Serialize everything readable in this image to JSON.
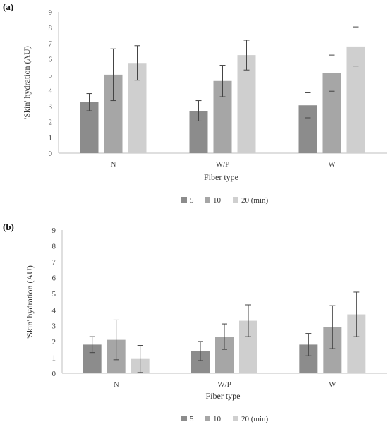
{
  "chart_data": [
    {
      "type": "bar",
      "panel_label": "(a)",
      "categories": [
        "N",
        "W/P",
        "W"
      ],
      "series": [
        {
          "name": "5",
          "values": [
            3.25,
            2.7,
            3.05
          ],
          "errors": [
            0.55,
            0.65,
            0.8
          ],
          "color": "#8c8c8c"
        },
        {
          "name": "10",
          "values": [
            5.0,
            4.6,
            5.1
          ],
          "errors": [
            1.65,
            1.0,
            1.15
          ],
          "color": "#a6a6a6"
        },
        {
          "name": "20 (min)",
          "values": [
            5.75,
            6.25,
            6.8
          ],
          "errors": [
            1.1,
            0.95,
            1.25
          ],
          "color": "#cfcfcf"
        }
      ],
      "title": "",
      "xlabel": "Fiber type",
      "ylabel": "'Skin' hydration (AU)",
      "ylim": [
        0,
        9
      ],
      "yticks": [
        "0",
        "1",
        "2",
        "3",
        "4",
        "5",
        "6",
        "7",
        "8",
        "9"
      ],
      "grid": false,
      "legend_position": "bottom"
    },
    {
      "type": "bar",
      "panel_label": "(b)",
      "categories": [
        "N",
        "W/P",
        "W"
      ],
      "series": [
        {
          "name": "5",
          "values": [
            1.8,
            1.4,
            1.8
          ],
          "errors": [
            0.5,
            0.6,
            0.7
          ],
          "color": "#8c8c8c"
        },
        {
          "name": "10",
          "values": [
            2.1,
            2.3,
            2.9
          ],
          "errors": [
            1.25,
            0.8,
            1.35
          ],
          "color": "#a6a6a6"
        },
        {
          "name": "20 (min)",
          "values": [
            0.9,
            3.3,
            3.7
          ],
          "errors": [
            0.85,
            1.0,
            1.4
          ],
          "color": "#cfcfcf"
        }
      ],
      "title": "",
      "xlabel": "Fiber type",
      "ylabel": "'Skin' hydration (AU)",
      "ylim": [
        0,
        9
      ],
      "yticks": [
        "0",
        "1",
        "2",
        "3",
        "4",
        "5",
        "6",
        "7",
        "8",
        "9"
      ],
      "grid": false,
      "legend_position": "bottom"
    }
  ]
}
